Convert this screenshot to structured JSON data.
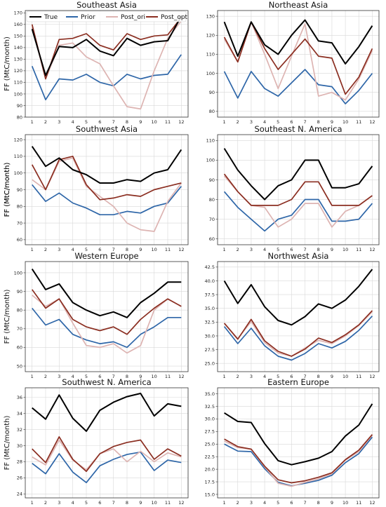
{
  "legend": {
    "placement": "top-left of first panel",
    "entries": [
      {
        "name": "True",
        "color": "#000000"
      },
      {
        "name": "Prior",
        "color": "#2e66a8"
      },
      {
        "name": "Post_ori",
        "color": "#ddb4b2"
      },
      {
        "name": "Post_opt",
        "color": "#8b2e21"
      }
    ]
  },
  "chart_data": [
    {
      "type": "line",
      "title": "Southeast Asia",
      "ylabel": "FF (MtC/month)",
      "x": [
        1,
        2,
        3,
        4,
        5,
        6,
        7,
        8,
        9,
        10,
        11,
        12
      ],
      "ylim": [
        80,
        172
      ],
      "yticks": [
        80,
        90,
        100,
        110,
        120,
        130,
        140,
        150,
        160,
        170
      ],
      "grid": true,
      "series": [
        {
          "name": "True",
          "values": [
            156,
            116,
            141,
            140,
            147,
            137,
            133,
            148,
            142,
            145,
            146,
            167
          ]
        },
        {
          "name": "Prior",
          "values": [
            124,
            95,
            113,
            112,
            117,
            110,
            107,
            117,
            113,
            116,
            117,
            134
          ]
        },
        {
          "name": "Post_ori",
          "values": [
            158,
            113,
            142,
            144,
            132,
            126,
            107,
            89,
            87,
            120,
            148,
            163
          ]
        },
        {
          "name": "Post_opt",
          "values": [
            160,
            113,
            147,
            148,
            152,
            142,
            138,
            152,
            147,
            150,
            151,
            166
          ]
        }
      ]
    },
    {
      "type": "line",
      "title": "Northeast Asia",
      "ylabel": "",
      "x": [
        1,
        2,
        3,
        4,
        5,
        6,
        7,
        8,
        9,
        10,
        11,
        12
      ],
      "ylim": [
        77,
        133
      ],
      "yticks": [
        80,
        90,
        100,
        110,
        120,
        130
      ],
      "grid": true,
      "series": [
        {
          "name": "True",
          "values": [
            127,
            109,
            127,
            115,
            110,
            120,
            128,
            117,
            116,
            105,
            114,
            125
          ]
        },
        {
          "name": "Prior",
          "values": [
            101,
            87,
            101,
            92,
            88,
            95,
            102,
            94,
            93,
            84,
            91,
            100
          ]
        },
        {
          "name": "Post_ori",
          "values": [
            118,
            106,
            127,
            110,
            92,
            109,
            126,
            88,
            90,
            86,
            97,
            112
          ]
        },
        {
          "name": "Post_opt",
          "values": [
            119,
            106,
            127,
            113,
            102,
            110,
            118,
            109,
            108,
            89,
            98,
            113
          ]
        }
      ]
    },
    {
      "type": "line",
      "title": "Southwest Asia",
      "ylabel": "FF (MtC/month)",
      "x": [
        1,
        2,
        3,
        4,
        5,
        6,
        7,
        8,
        9,
        10,
        11,
        12
      ],
      "ylim": [
        57,
        123
      ],
      "yticks": [
        60,
        70,
        80,
        90,
        100,
        110,
        120
      ],
      "grid": true,
      "series": [
        {
          "name": "True",
          "values": [
            116,
            104,
            109,
            102,
            99,
            94,
            94,
            96,
            95,
            100,
            102,
            114
          ]
        },
        {
          "name": "Prior",
          "values": [
            93,
            83,
            88,
            82,
            79,
            75,
            75,
            77,
            76,
            80,
            82,
            92
          ]
        },
        {
          "name": "Post_ori",
          "values": [
            96,
            90,
            107,
            109,
            92,
            86,
            80,
            70,
            66,
            65,
            83,
            94
          ]
        },
        {
          "name": "Post_opt",
          "values": [
            105,
            90,
            108,
            110,
            93,
            84,
            85,
            87,
            86,
            90,
            92,
            94
          ]
        }
      ]
    },
    {
      "type": "line",
      "title": "Southeast N. America",
      "ylabel": "FF (MtC/month)",
      "x": [
        1,
        2,
        3,
        4,
        5,
        6,
        7,
        8,
        9,
        10,
        11,
        12
      ],
      "ylim": [
        57,
        113
      ],
      "yticks": [
        60,
        70,
        80,
        90,
        100,
        110
      ],
      "grid": true,
      "series": [
        {
          "name": "True",
          "values": [
            106,
            95,
            87,
            80,
            87,
            90,
            100,
            100,
            86,
            86,
            88,
            97
          ]
        },
        {
          "name": "Prior",
          "values": [
            84,
            76,
            70,
            64,
            70,
            72,
            80,
            80,
            69,
            69,
            70,
            78
          ]
        },
        {
          "name": "Post_ori",
          "values": [
            92,
            84,
            77,
            76,
            66,
            70,
            78,
            78,
            66,
            74,
            77,
            82
          ]
        },
        {
          "name": "Post_opt",
          "values": [
            93,
            84,
            77,
            77,
            77,
            80,
            89,
            89,
            77,
            77,
            77,
            82
          ]
        }
      ]
    },
    {
      "type": "line",
      "title": "Western Europe",
      "ylabel": "FF (MtC/month)",
      "x": [
        1,
        2,
        3,
        4,
        5,
        6,
        7,
        8,
        9,
        10,
        11,
        12
      ],
      "ylim": [
        47,
        106
      ],
      "yticks": [
        50,
        60,
        70,
        80,
        90,
        100
      ],
      "grid": true,
      "series": [
        {
          "name": "True",
          "values": [
            102,
            91,
            94,
            84,
            80,
            77,
            79,
            76,
            84,
            89,
            95,
            95
          ]
        },
        {
          "name": "Prior",
          "values": [
            81,
            72,
            75,
            67,
            64,
            62,
            63,
            60,
            67,
            71,
            76,
            76
          ]
        },
        {
          "name": "Post_ori",
          "values": [
            88,
            82,
            86,
            73,
            61,
            60,
            62,
            57,
            61,
            80,
            86,
            82
          ]
        },
        {
          "name": "Post_opt",
          "values": [
            91,
            81,
            86,
            75,
            71,
            69,
            71,
            67,
            75,
            81,
            86,
            82
          ]
        }
      ]
    },
    {
      "type": "line",
      "title": "Northwest Asia",
      "ylabel": "",
      "x": [
        1,
        2,
        3,
        4,
        5,
        6,
        7,
        8,
        9,
        10,
        11,
        12
      ],
      "ylim": [
        23.5,
        43.5
      ],
      "yticks": [
        25.0,
        27.5,
        30.0,
        32.5,
        35.0,
        37.5,
        40.0,
        42.5
      ],
      "grid": true,
      "series": [
        {
          "name": "True",
          "values": [
            40.0,
            35.9,
            39.3,
            35.3,
            32.8,
            32.0,
            33.5,
            35.8,
            35.0,
            36.5,
            39.0,
            42.1
          ]
        },
        {
          "name": "Prior",
          "values": [
            31.7,
            28.6,
            31.4,
            28.2,
            26.3,
            25.6,
            26.8,
            28.6,
            27.8,
            29.0,
            31.0,
            33.6
          ]
        },
        {
          "name": "Post_ori",
          "values": [
            32.3,
            29.5,
            32.6,
            28.8,
            26.9,
            26.3,
            27.8,
            29.2,
            28.6,
            30.0,
            31.9,
            34.4
          ]
        },
        {
          "name": "Post_opt",
          "values": [
            32.3,
            29.4,
            33.0,
            29.1,
            27.2,
            26.3,
            27.6,
            29.6,
            28.8,
            30.2,
            32.0,
            34.6
          ]
        }
      ]
    },
    {
      "type": "line",
      "title": "Southwest N. America",
      "ylabel": "FF (MtC/month)",
      "x": [
        1,
        2,
        3,
        4,
        5,
        6,
        7,
        8,
        9,
        10,
        11,
        12
      ],
      "ylim": [
        23.5,
        37.2
      ],
      "yticks": [
        24,
        26,
        28,
        30,
        32,
        34,
        36
      ],
      "grid": true,
      "series": [
        {
          "name": "True",
          "values": [
            34.7,
            33.3,
            36.3,
            33.4,
            31.8,
            34.4,
            35.4,
            36.1,
            36.5,
            33.7,
            35.2,
            34.9
          ]
        },
        {
          "name": "Prior",
          "values": [
            27.8,
            26.5,
            29.0,
            26.7,
            25.4,
            27.5,
            28.3,
            28.9,
            29.2,
            26.9,
            28.2,
            27.9
          ]
        },
        {
          "name": "Post_ori",
          "values": [
            28.6,
            27.6,
            30.7,
            28.2,
            27.0,
            29.0,
            29.6,
            28.0,
            29.3,
            28.0,
            29.1,
            28.6
          ]
        },
        {
          "name": "Post_opt",
          "values": [
            29.6,
            27.9,
            31.1,
            28.3,
            26.8,
            29.0,
            29.9,
            30.4,
            30.7,
            28.3,
            29.6,
            28.7
          ]
        }
      ]
    },
    {
      "type": "line",
      "title": "Eastern Europe",
      "ylabel": "",
      "x": [
        1,
        2,
        3,
        4,
        5,
        6,
        7,
        8,
        9,
        10,
        11,
        12
      ],
      "ylim": [
        14.3,
        36.2
      ],
      "yticks": [
        15.0,
        17.5,
        20.0,
        22.5,
        25.0,
        27.5,
        30.0,
        32.5,
        35.0
      ],
      "grid": true,
      "series": [
        {
          "name": "True",
          "values": [
            31.2,
            29.5,
            29.3,
            25.1,
            21.7,
            20.9,
            21.5,
            22.2,
            23.5,
            26.6,
            28.8,
            33.0
          ]
        },
        {
          "name": "Prior",
          "values": [
            25.0,
            23.6,
            23.5,
            20.1,
            17.4,
            16.7,
            17.2,
            17.8,
            18.8,
            21.3,
            23.1,
            26.4
          ]
        },
        {
          "name": "Post_ori",
          "values": [
            25.6,
            24.3,
            24.0,
            20.5,
            17.2,
            16.6,
            17.4,
            18.1,
            19.1,
            21.8,
            23.5,
            26.8
          ]
        },
        {
          "name": "Post_opt",
          "values": [
            26.0,
            24.5,
            24.0,
            20.6,
            17.9,
            17.3,
            17.7,
            18.4,
            19.3,
            21.9,
            23.8,
            26.9
          ]
        }
      ]
    }
  ]
}
